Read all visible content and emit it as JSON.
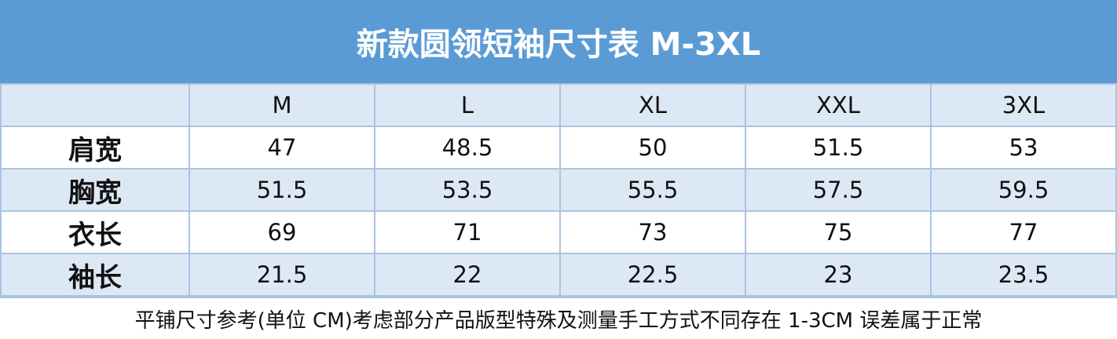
{
  "title": "新款圆领短袖尺寸表 M-3XL",
  "colors": {
    "header_bg": "#5b9bd5",
    "alt_row_bg": "#dde8f5",
    "border": "#a9c4e3"
  },
  "table": {
    "columns": [
      "",
      "M",
      "L",
      "XL",
      "XXL",
      "3XL"
    ],
    "rows": [
      {
        "label": "肩宽",
        "values": [
          "47",
          "48.5",
          "50",
          "51.5",
          "53"
        ]
      },
      {
        "label": "胸宽",
        "values": [
          "51.5",
          "53.5",
          "55.5",
          "57.5",
          "59.5"
        ]
      },
      {
        "label": "衣长",
        "values": [
          "69",
          "71",
          "73",
          "75",
          "77"
        ]
      },
      {
        "label": "袖长",
        "values": [
          "21.5",
          "22",
          "22.5",
          "23",
          "23.5"
        ]
      }
    ]
  },
  "footer": "平铺尺寸参考(单位 CM)考虑部分产品版型特殊及测量手工方式不同存在 1-3CM 误差属于正常"
}
